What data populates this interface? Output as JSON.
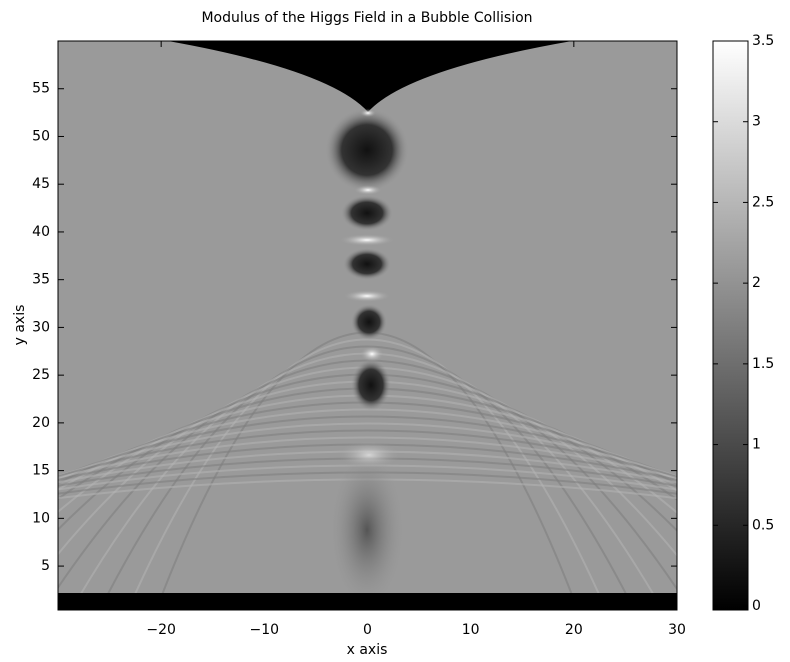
{
  "chart_data": {
    "type": "heatmap",
    "title": "Modulus of the Higgs Field in a Bubble Collision",
    "x_label": "x axis",
    "y_label": "y axis",
    "xlim": [
      -30,
      30
    ],
    "xticks": [
      {
        "value": -20,
        "label": "−20"
      },
      {
        "value": -10,
        "label": "−10"
      },
      0,
      10,
      20,
      30
    ],
    "ylim": [
      0.4,
      60
    ],
    "yticks": [
      5,
      10,
      15,
      20,
      25,
      30,
      35,
      40,
      45,
      50,
      55
    ],
    "colorbar_lim": [
      0,
      3.5
    ],
    "colorbar_ticks": [
      0,
      0.5,
      1,
      1.5,
      2,
      2.5,
      3,
      3.5
    ]
  }
}
